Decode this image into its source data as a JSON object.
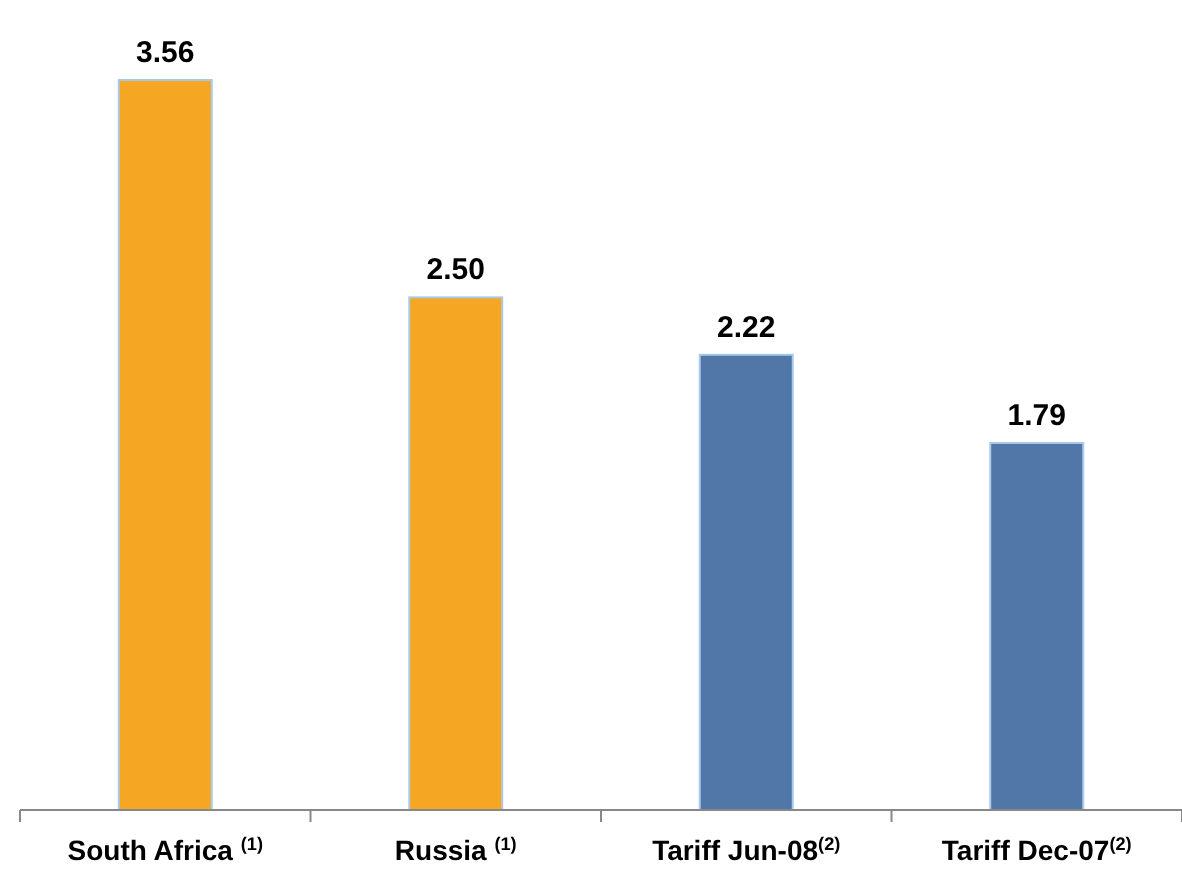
{
  "chart_data": {
    "type": "bar",
    "categories": [
      "South Africa $^{(1)}$",
      "Russia $^{(1)}$",
      "Tariff Jun-08$^{(2)}$",
      "Tariff Dec-07$^{(2)}$"
    ],
    "values": [
      3.56,
      2.5,
      2.22,
      1.79
    ],
    "value_labels": [
      "3.56",
      "2.50",
      "2.22",
      "1.79"
    ],
    "colors": [
      "#f5a623",
      "#f5a623",
      "#5077a8",
      "#5077a8"
    ]
  }
}
